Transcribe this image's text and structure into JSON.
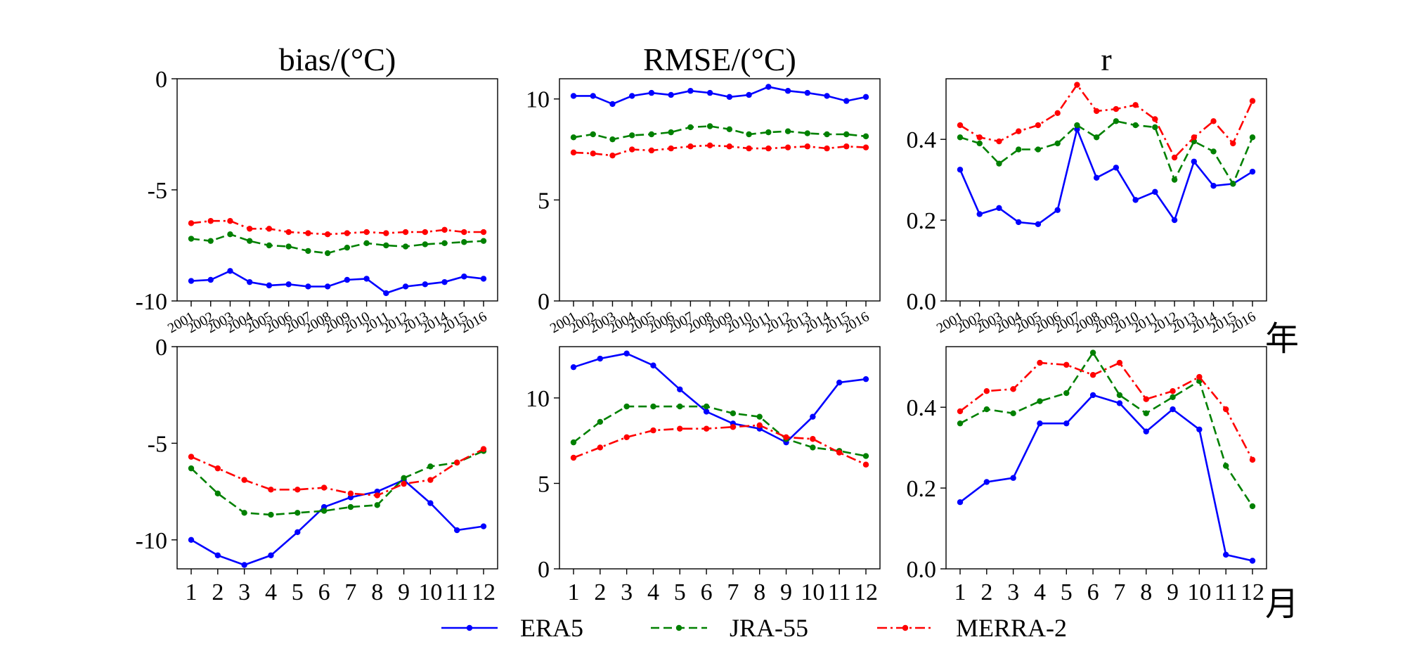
{
  "colors": {
    "era5": "#0000ff",
    "jra55": "#008000",
    "merra2": "#ff0000",
    "axis": "#000000"
  },
  "legend": {
    "placement": "bottom-center",
    "entries": [
      "ERA5",
      "JRA-55",
      "MERRA-2"
    ]
  },
  "axis_units": {
    "year_label": "年",
    "month_label": "月"
  },
  "chart_data": [
    {
      "type": "line",
      "title": "bias/(°C)",
      "xlabel": "",
      "ylabel": "",
      "categories": [
        "2001",
        "2002",
        "2003",
        "2004",
        "2005",
        "2006",
        "2007",
        "2008",
        "2009",
        "2010",
        "2011",
        "2012",
        "2013",
        "2014",
        "2015",
        "2016"
      ],
      "ylim": [
        -10,
        0
      ],
      "yticks": [
        "0",
        "-5",
        "-10"
      ],
      "ytick_values": [
        0,
        -5,
        -10
      ],
      "rotated_xticks": true,
      "series": [
        {
          "name": "ERA5",
          "values": [
            -9.1,
            -9.05,
            -8.65,
            -9.15,
            -9.3,
            -9.25,
            -9.35,
            -9.35,
            -9.05,
            -9.0,
            -9.65,
            -9.35,
            -9.25,
            -9.15,
            -8.9,
            -9.0
          ]
        },
        {
          "name": "JRA-55",
          "values": [
            -7.2,
            -7.3,
            -7.0,
            -7.3,
            -7.5,
            -7.55,
            -7.75,
            -7.85,
            -7.6,
            -7.4,
            -7.5,
            -7.55,
            -7.45,
            -7.4,
            -7.35,
            -7.3
          ]
        },
        {
          "name": "MERRA-2",
          "values": [
            -6.5,
            -6.4,
            -6.4,
            -6.75,
            -6.75,
            -6.9,
            -6.95,
            -7.0,
            -6.95,
            -6.9,
            -6.95,
            -6.9,
            -6.9,
            -6.8,
            -6.9,
            -6.9
          ]
        }
      ]
    },
    {
      "type": "line",
      "title": "RMSE/(°C)",
      "xlabel": "",
      "ylabel": "",
      "categories": [
        "2001",
        "2002",
        "2003",
        "2004",
        "2005",
        "2006",
        "2007",
        "2008",
        "2009",
        "2010",
        "2011",
        "2012",
        "2013",
        "2014",
        "2015",
        "2016"
      ],
      "ylim": [
        0,
        11
      ],
      "yticks": [
        "0",
        "5",
        "10"
      ],
      "ytick_values": [
        0,
        5,
        10
      ],
      "rotated_xticks": true,
      "series": [
        {
          "name": "ERA5",
          "values": [
            10.15,
            10.15,
            9.75,
            10.15,
            10.3,
            10.2,
            10.4,
            10.3,
            10.1,
            10.2,
            10.6,
            10.4,
            10.3,
            10.15,
            9.9,
            10.1
          ]
        },
        {
          "name": "JRA-55",
          "values": [
            8.1,
            8.25,
            8.0,
            8.2,
            8.25,
            8.35,
            8.6,
            8.65,
            8.5,
            8.25,
            8.35,
            8.4,
            8.3,
            8.25,
            8.25,
            8.15
          ]
        },
        {
          "name": "MERRA-2",
          "values": [
            7.35,
            7.3,
            7.2,
            7.5,
            7.45,
            7.55,
            7.65,
            7.7,
            7.65,
            7.55,
            7.55,
            7.6,
            7.65,
            7.55,
            7.65,
            7.6
          ]
        }
      ]
    },
    {
      "type": "line",
      "title": "r",
      "xlabel": "年",
      "ylabel": "",
      "categories": [
        "2001",
        "2002",
        "2003",
        "2004",
        "2005",
        "2006",
        "2007",
        "2008",
        "2009",
        "2010",
        "2011",
        "2012",
        "2013",
        "2014",
        "2015",
        "2016"
      ],
      "ylim": [
        0,
        0.55
      ],
      "yticks": [
        "0.0",
        "0.2",
        "0.4"
      ],
      "ytick_values": [
        0,
        0.2,
        0.4
      ],
      "rotated_xticks": true,
      "series": [
        {
          "name": "ERA5",
          "values": [
            0.325,
            0.215,
            0.23,
            0.195,
            0.19,
            0.225,
            0.425,
            0.305,
            0.33,
            0.25,
            0.27,
            0.2,
            0.345,
            0.285,
            0.29,
            0.32
          ]
        },
        {
          "name": "JRA-55",
          "values": [
            0.405,
            0.39,
            0.34,
            0.375,
            0.375,
            0.39,
            0.435,
            0.405,
            0.445,
            0.435,
            0.43,
            0.3,
            0.395,
            0.37,
            0.29,
            0.405
          ]
        },
        {
          "name": "MERRA-2",
          "values": [
            0.435,
            0.405,
            0.395,
            0.42,
            0.435,
            0.465,
            0.535,
            0.47,
            0.475,
            0.485,
            0.45,
            0.355,
            0.405,
            0.445,
            0.39,
            0.495
          ]
        }
      ]
    },
    {
      "type": "line",
      "title": "",
      "xlabel": "",
      "ylabel": "",
      "categories": [
        "1",
        "2",
        "3",
        "4",
        "5",
        "6",
        "7",
        "8",
        "9",
        "10",
        "11",
        "12"
      ],
      "ylim": [
        -11.5,
        0
      ],
      "yticks": [
        "0",
        "-5",
        "-10"
      ],
      "ytick_values": [
        0,
        -5,
        -10
      ],
      "rotated_xticks": false,
      "series": [
        {
          "name": "ERA5",
          "values": [
            -10.0,
            -10.8,
            -11.3,
            -10.8,
            -9.6,
            -8.3,
            -7.8,
            -7.5,
            -6.9,
            -8.1,
            -9.5,
            -9.3
          ]
        },
        {
          "name": "JRA-55",
          "values": [
            -6.3,
            -7.6,
            -8.6,
            -8.7,
            -8.6,
            -8.5,
            -8.3,
            -8.2,
            -6.8,
            -6.2,
            -6.0,
            -5.4
          ]
        },
        {
          "name": "MERRA-2",
          "values": [
            -5.7,
            -6.3,
            -6.9,
            -7.4,
            -7.4,
            -7.3,
            -7.6,
            -7.7,
            -7.1,
            -6.9,
            -6.0,
            -5.3
          ]
        }
      ]
    },
    {
      "type": "line",
      "title": "",
      "xlabel": "",
      "ylabel": "",
      "categories": [
        "1",
        "2",
        "3",
        "4",
        "5",
        "6",
        "7",
        "8",
        "9",
        "10",
        "11",
        "12"
      ],
      "ylim": [
        0,
        13
      ],
      "yticks": [
        "0",
        "5",
        "10"
      ],
      "ytick_values": [
        0,
        5,
        10
      ],
      "rotated_xticks": false,
      "series": [
        {
          "name": "ERA5",
          "values": [
            11.8,
            12.3,
            12.6,
            11.9,
            10.5,
            9.2,
            8.5,
            8.2,
            7.4,
            8.9,
            10.9,
            11.1
          ]
        },
        {
          "name": "JRA-55",
          "values": [
            7.4,
            8.6,
            9.5,
            9.5,
            9.5,
            9.5,
            9.1,
            8.9,
            7.6,
            7.1,
            6.9,
            6.6
          ]
        },
        {
          "name": "MERRA-2",
          "values": [
            6.5,
            7.1,
            7.7,
            8.1,
            8.2,
            8.2,
            8.3,
            8.4,
            7.7,
            7.6,
            6.8,
            6.1
          ]
        }
      ]
    },
    {
      "type": "line",
      "title": "",
      "xlabel": "月",
      "ylabel": "",
      "categories": [
        "1",
        "2",
        "3",
        "4",
        "5",
        "6",
        "7",
        "8",
        "9",
        "10",
        "11",
        "12"
      ],
      "ylim": [
        0,
        0.55
      ],
      "yticks": [
        "0.0",
        "0.2",
        "0.4"
      ],
      "ytick_values": [
        0,
        0.2,
        0.4
      ],
      "rotated_xticks": false,
      "series": [
        {
          "name": "ERA5",
          "values": [
            0.165,
            0.215,
            0.225,
            0.36,
            0.36,
            0.43,
            0.41,
            0.34,
            0.395,
            0.345,
            0.035,
            0.02
          ]
        },
        {
          "name": "JRA-55",
          "values": [
            0.36,
            0.395,
            0.385,
            0.415,
            0.435,
            0.535,
            0.43,
            0.385,
            0.425,
            0.465,
            0.255,
            0.155
          ]
        },
        {
          "name": "MERRA-2",
          "values": [
            0.39,
            0.44,
            0.445,
            0.51,
            0.505,
            0.48,
            0.51,
            0.42,
            0.44,
            0.475,
            0.395,
            0.27
          ]
        }
      ]
    }
  ]
}
